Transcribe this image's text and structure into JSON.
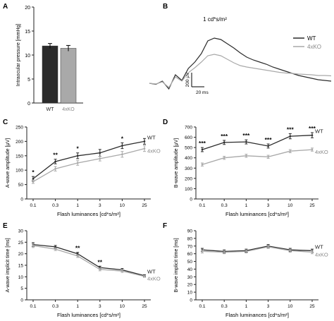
{
  "colors": {
    "wt": "#2b2b2b",
    "ko": "#a9a9a9",
    "axis": "#222222"
  },
  "chart_data": [
    {
      "panel": "A",
      "type": "bar",
      "categories": [
        "WT",
        "4xKO"
      ],
      "values": [
        11.9,
        11.4
      ],
      "errors": [
        0.5,
        0.6
      ],
      "ylabel": "Intraocular pressure [mmHg]",
      "yticks": [
        "0",
        "5",
        "10",
        "15",
        "20"
      ],
      "ylim": [
        0,
        20
      ]
    },
    {
      "panel": "B",
      "type": "line",
      "annotation": "1 cd*s/m²",
      "scale_y": "200 µV",
      "scale_x": "20 ms",
      "series": [
        {
          "name": "WT",
          "values": [
            0,
            -15,
            30,
            -80,
            120,
            40,
            210,
            300,
            420,
            600,
            640,
            620,
            560,
            500,
            430,
            370,
            330,
            300,
            270,
            230,
            200,
            170,
            140,
            110,
            90,
            70,
            50,
            40,
            30
          ]
        },
        {
          "name": "4xKO",
          "values": [
            0,
            -10,
            20,
            -60,
            90,
            30,
            150,
            220,
            300,
            390,
            410,
            390,
            340,
            290,
            250,
            230,
            215,
            200,
            185,
            170,
            155,
            145,
            140,
            130,
            125,
            120,
            110,
            110,
            105
          ]
        }
      ],
      "legend": "top-right"
    },
    {
      "panel": "C",
      "type": "line",
      "categories": [
        "0.1",
        "0.3",
        "1",
        "3",
        "10",
        "25"
      ],
      "series": [
        {
          "name": "WT",
          "values": [
            70,
            130,
            150,
            160,
            185,
            200
          ],
          "errors": [
            8,
            8,
            10,
            12,
            10,
            10
          ]
        },
        {
          "name": "4xKO",
          "values": [
            60,
            105,
            125,
            140,
            155,
            175
          ],
          "errors": [
            6,
            8,
            8,
            8,
            10,
            10
          ]
        }
      ],
      "significance": [
        "*",
        "**",
        "*",
        "",
        "*",
        ""
      ],
      "ylabel": "A-wave amplitude [µV]",
      "xlabel": "Flash luminances [cd*s/m²]",
      "yticks": [
        "0",
        "50",
        "100",
        "150",
        "200",
        "250"
      ],
      "ylim": [
        0,
        250
      ]
    },
    {
      "panel": "D",
      "type": "line",
      "categories": [
        "0.1",
        "0.3",
        "1",
        "3",
        "10",
        "25"
      ],
      "series": [
        {
          "name": "WT",
          "values": [
            480,
            550,
            555,
            515,
            610,
            620
          ],
          "errors": [
            20,
            20,
            20,
            20,
            25,
            25
          ]
        },
        {
          "name": "4xKO",
          "values": [
            335,
            400,
            420,
            410,
            465,
            480
          ],
          "errors": [
            15,
            15,
            15,
            15,
            15,
            15
          ]
        }
      ],
      "significance": [
        "***",
        "***",
        "***",
        "***",
        "***",
        "***"
      ],
      "ylabel": "B-wave amplitude [µV]",
      "xlabel": "Flash luminances [cd*s/m²]",
      "yticks": [
        "0",
        "100",
        "200",
        "300",
        "400",
        "500",
        "600",
        "700"
      ],
      "ylim": [
        0,
        700
      ]
    },
    {
      "panel": "E",
      "type": "line",
      "categories": [
        "0.1",
        "0.3",
        "1",
        "3",
        "10",
        "25"
      ],
      "series": [
        {
          "name": "WT",
          "values": [
            24,
            23,
            20,
            14,
            13,
            10.5
          ],
          "errors": [
            0.8,
            0.6,
            0.6,
            0.6,
            0.6,
            0.4
          ]
        },
        {
          "name": "4xKO",
          "values": [
            23.5,
            22,
            19,
            13.2,
            12.5,
            10.2
          ],
          "errors": [
            0.8,
            0.6,
            0.6,
            0.6,
            0.6,
            0.4
          ]
        }
      ],
      "significance": [
        "",
        "",
        "**",
        "**",
        "",
        ""
      ],
      "ylabel": "A-wave implicit time [ms]",
      "xlabel": "Flash luminances [cd*s/m²]",
      "yticks": [
        "0",
        "5",
        "10",
        "15",
        "20",
        "25",
        "30"
      ],
      "ylim": [
        0,
        30
      ]
    },
    {
      "panel": "F",
      "type": "line",
      "categories": [
        "0.1",
        "0.3",
        "1",
        "3",
        "10",
        "25"
      ],
      "series": [
        {
          "name": "WT",
          "values": [
            65,
            63,
            64,
            70,
            65,
            64
          ],
          "errors": [
            2,
            2,
            2,
            2,
            2,
            2
          ]
        },
        {
          "name": "4xKO",
          "values": [
            63,
            62,
            63,
            69,
            64,
            62
          ],
          "errors": [
            2,
            2,
            2,
            2,
            2,
            2
          ]
        }
      ],
      "significance": [
        "",
        "",
        "",
        "",
        "",
        ""
      ],
      "ylabel": "B-wave implicit time [ms]",
      "xlabel": "Flash luminances [cd*s/m²]",
      "yticks": [
        "0",
        "10",
        "20",
        "30",
        "40",
        "50",
        "60",
        "70",
        "80",
        "90"
      ],
      "ylim": [
        0,
        90
      ]
    }
  ]
}
